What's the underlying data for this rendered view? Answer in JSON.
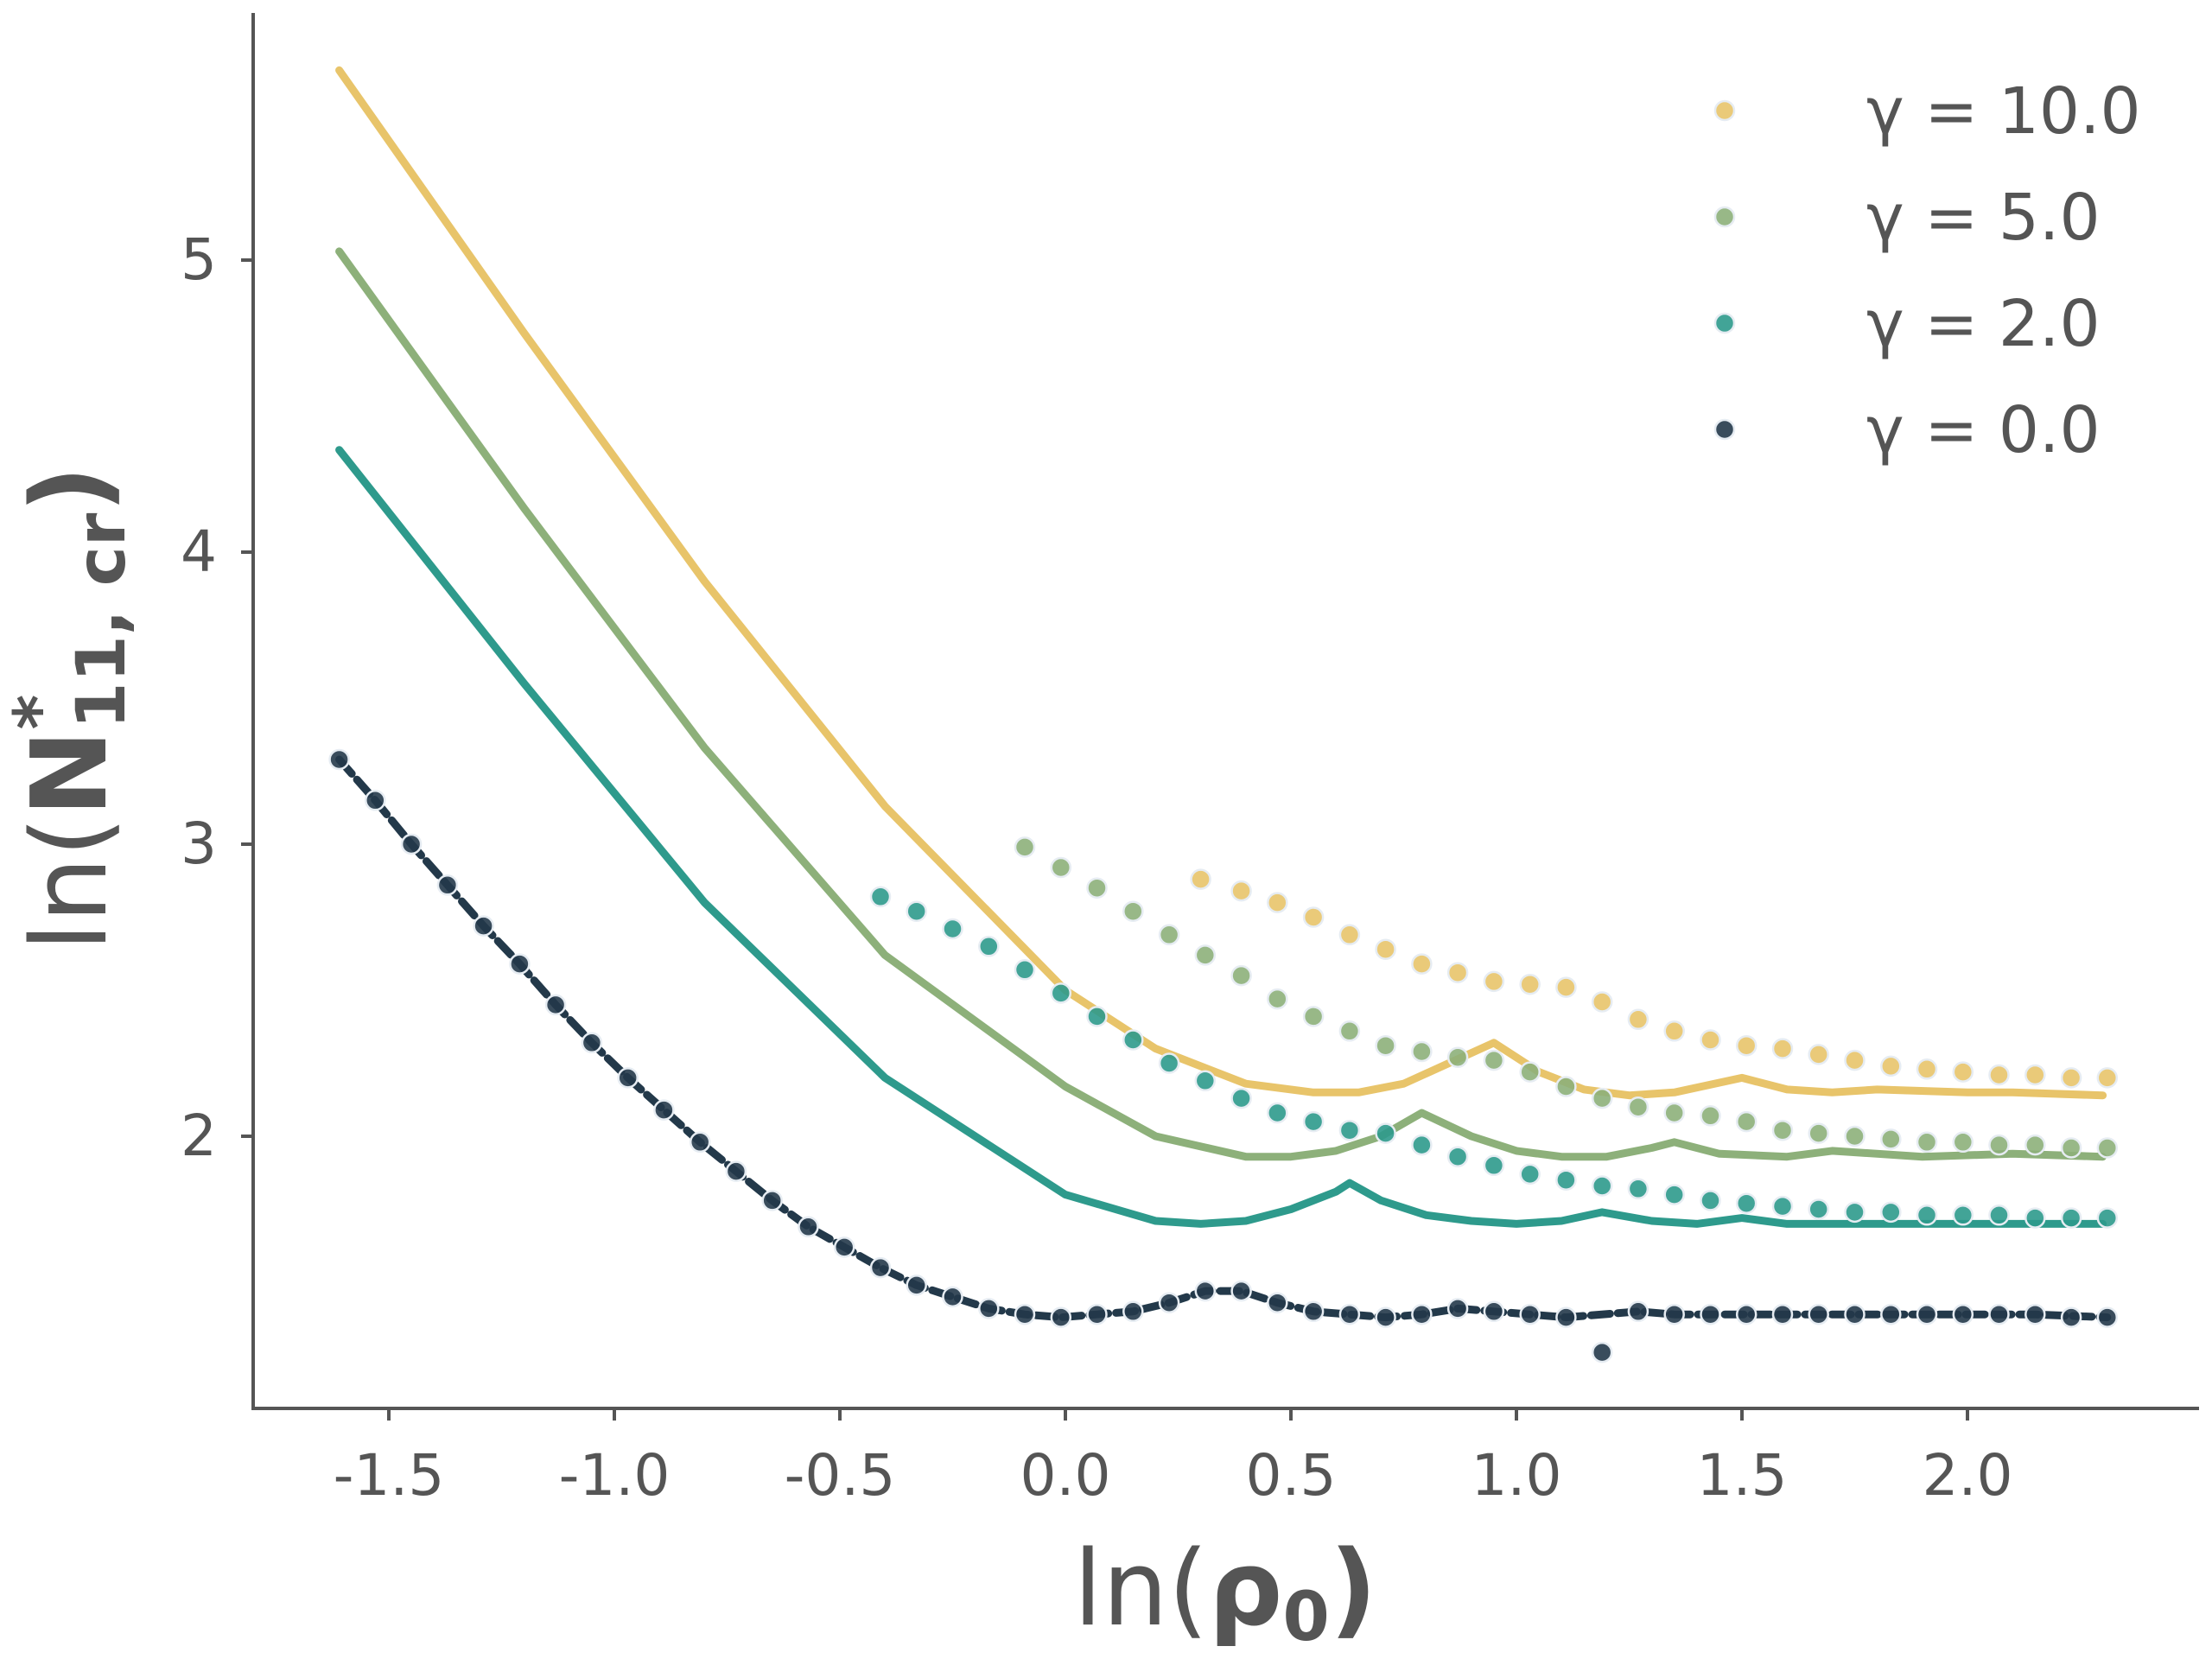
{
  "chart_data": {
    "type": "line",
    "title": "",
    "xlabel": {
      "prefix": "ln(",
      "main": "ρ",
      "sub": "0",
      "suffix": ")"
    },
    "ylabel": {
      "prefix": "ln(",
      "main": "N",
      "sup": "*",
      "sub": "11, cr",
      "suffix": ")"
    },
    "xlim": [
      -1.8,
      2.5
    ],
    "ylim": [
      1.0,
      5.8
    ],
    "xticks": [
      -1.5,
      -1.0,
      -0.5,
      0.0,
      0.5,
      1.0,
      1.5,
      2.0
    ],
    "xtick_labels": [
      "-1.5",
      "-1.0",
      "-0.5",
      "0.0",
      "0.5",
      "1.0",
      "1.5",
      "2.0"
    ],
    "yticks": [
      2,
      3,
      4,
      5
    ],
    "ytick_labels": [
      "2",
      "3",
      "4",
      "5"
    ],
    "grid": false,
    "legend_position": "top-right",
    "series": [
      {
        "name": "γ = 10.0",
        "color": "#E8C46A",
        "line": [
          [
            -1.61,
            5.65
          ],
          [
            -1.2,
            4.75
          ],
          [
            -0.8,
            3.9
          ],
          [
            -0.4,
            3.13
          ],
          [
            0.0,
            2.5
          ],
          [
            0.2,
            2.3
          ],
          [
            0.4,
            2.18
          ],
          [
            0.55,
            2.15
          ],
          [
            0.65,
            2.15
          ],
          [
            0.75,
            2.18
          ],
          [
            0.85,
            2.25
          ],
          [
            0.95,
            2.32
          ],
          [
            1.05,
            2.22
          ],
          [
            1.15,
            2.16
          ],
          [
            1.25,
            2.14
          ],
          [
            1.35,
            2.15
          ],
          [
            1.5,
            2.2
          ],
          [
            1.6,
            2.16
          ],
          [
            1.7,
            2.15
          ],
          [
            1.8,
            2.16
          ],
          [
            2.0,
            2.15
          ],
          [
            2.1,
            2.15
          ],
          [
            2.3,
            2.14
          ]
        ],
        "points": [
          [
            0.3,
            2.88
          ],
          [
            0.39,
            2.84
          ],
          [
            0.47,
            2.8
          ],
          [
            0.55,
            2.75
          ],
          [
            0.63,
            2.69
          ],
          [
            0.71,
            2.64
          ],
          [
            0.79,
            2.59
          ],
          [
            0.87,
            2.56
          ],
          [
            0.95,
            2.53
          ],
          [
            1.03,
            2.52
          ],
          [
            1.11,
            2.51
          ],
          [
            1.19,
            2.46
          ],
          [
            1.27,
            2.4
          ],
          [
            1.35,
            2.36
          ],
          [
            1.43,
            2.33
          ],
          [
            1.51,
            2.31
          ],
          [
            1.59,
            2.3
          ],
          [
            1.67,
            2.28
          ],
          [
            1.75,
            2.26
          ],
          [
            1.83,
            2.24
          ],
          [
            1.91,
            2.23
          ],
          [
            1.99,
            2.22
          ],
          [
            2.07,
            2.21
          ],
          [
            2.15,
            2.21
          ],
          [
            2.23,
            2.2
          ],
          [
            2.31,
            2.2
          ]
        ]
      },
      {
        "name": "γ = 5.0",
        "color": "#8DB07A",
        "line": [
          [
            -1.61,
            5.03
          ],
          [
            -1.2,
            4.15
          ],
          [
            -0.8,
            3.33
          ],
          [
            -0.4,
            2.62
          ],
          [
            0.0,
            2.17
          ],
          [
            0.2,
            2.0
          ],
          [
            0.4,
            1.93
          ],
          [
            0.5,
            1.93
          ],
          [
            0.6,
            1.95
          ],
          [
            0.7,
            2.0
          ],
          [
            0.79,
            2.08
          ],
          [
            0.9,
            2.0
          ],
          [
            1.0,
            1.95
          ],
          [
            1.1,
            1.93
          ],
          [
            1.2,
            1.93
          ],
          [
            1.3,
            1.96
          ],
          [
            1.35,
            1.98
          ],
          [
            1.45,
            1.94
          ],
          [
            1.6,
            1.93
          ],
          [
            1.7,
            1.95
          ],
          [
            1.9,
            1.93
          ],
          [
            2.1,
            1.94
          ],
          [
            2.3,
            1.93
          ]
        ],
        "points": [
          [
            -0.09,
            2.99
          ],
          [
            -0.01,
            2.92
          ],
          [
            0.07,
            2.85
          ],
          [
            0.15,
            2.77
          ],
          [
            0.23,
            2.69
          ],
          [
            0.31,
            2.62
          ],
          [
            0.39,
            2.55
          ],
          [
            0.47,
            2.47
          ],
          [
            0.55,
            2.41
          ],
          [
            0.63,
            2.36
          ],
          [
            0.71,
            2.31
          ],
          [
            0.79,
            2.29
          ],
          [
            0.87,
            2.27
          ],
          [
            0.95,
            2.26
          ],
          [
            1.03,
            2.22
          ],
          [
            1.11,
            2.17
          ],
          [
            1.19,
            2.13
          ],
          [
            1.27,
            2.1
          ],
          [
            1.35,
            2.08
          ],
          [
            1.43,
            2.07
          ],
          [
            1.51,
            2.05
          ],
          [
            1.59,
            2.02
          ],
          [
            1.67,
            2.01
          ],
          [
            1.75,
            2.0
          ],
          [
            1.83,
            1.99
          ],
          [
            1.91,
            1.98
          ],
          [
            1.99,
            1.98
          ],
          [
            2.07,
            1.97
          ],
          [
            2.15,
            1.97
          ],
          [
            2.23,
            1.96
          ],
          [
            2.31,
            1.96
          ]
        ]
      },
      {
        "name": "γ = 2.0",
        "color": "#2E9A8C",
        "line": [
          [
            -1.61,
            4.35
          ],
          [
            -1.2,
            3.55
          ],
          [
            -0.8,
            2.8
          ],
          [
            -0.4,
            2.2
          ],
          [
            0.0,
            1.8
          ],
          [
            0.2,
            1.71
          ],
          [
            0.3,
            1.7
          ],
          [
            0.4,
            1.71
          ],
          [
            0.5,
            1.75
          ],
          [
            0.6,
            1.81
          ],
          [
            0.63,
            1.84
          ],
          [
            0.7,
            1.78
          ],
          [
            0.8,
            1.73
          ],
          [
            0.9,
            1.71
          ],
          [
            1.0,
            1.7
          ],
          [
            1.1,
            1.71
          ],
          [
            1.19,
            1.74
          ],
          [
            1.3,
            1.71
          ],
          [
            1.4,
            1.7
          ],
          [
            1.5,
            1.72
          ],
          [
            1.6,
            1.7
          ],
          [
            1.7,
            1.7
          ],
          [
            1.9,
            1.7
          ],
          [
            2.1,
            1.7
          ],
          [
            2.3,
            1.7
          ]
        ],
        "points": [
          [
            -0.41,
            2.82
          ],
          [
            -0.33,
            2.77
          ],
          [
            -0.25,
            2.71
          ],
          [
            -0.17,
            2.65
          ],
          [
            -0.09,
            2.57
          ],
          [
            -0.01,
            2.49
          ],
          [
            0.07,
            2.41
          ],
          [
            0.15,
            2.33
          ],
          [
            0.23,
            2.25
          ],
          [
            0.31,
            2.19
          ],
          [
            0.39,
            2.13
          ],
          [
            0.47,
            2.08
          ],
          [
            0.55,
            2.05
          ],
          [
            0.63,
            2.02
          ],
          [
            0.71,
            2.01
          ],
          [
            0.79,
            1.97
          ],
          [
            0.87,
            1.93
          ],
          [
            0.95,
            1.9
          ],
          [
            1.03,
            1.87
          ],
          [
            1.11,
            1.85
          ],
          [
            1.19,
            1.83
          ],
          [
            1.27,
            1.82
          ],
          [
            1.35,
            1.8
          ],
          [
            1.43,
            1.78
          ],
          [
            1.51,
            1.77
          ],
          [
            1.59,
            1.76
          ],
          [
            1.67,
            1.75
          ],
          [
            1.75,
            1.74
          ],
          [
            1.83,
            1.74
          ],
          [
            1.91,
            1.73
          ],
          [
            1.99,
            1.73
          ],
          [
            2.07,
            1.73
          ],
          [
            2.15,
            1.72
          ],
          [
            2.23,
            1.72
          ],
          [
            2.31,
            1.72
          ]
        ]
      },
      {
        "name": "γ = 0.0",
        "color": "#23394A",
        "line": [
          [
            -1.61,
            3.29
          ],
          [
            -1.53,
            3.15
          ],
          [
            -1.45,
            3.0
          ],
          [
            -1.37,
            2.86
          ],
          [
            -1.29,
            2.72
          ],
          [
            -1.21,
            2.59
          ],
          [
            -1.13,
            2.45
          ],
          [
            -1.05,
            2.32
          ],
          [
            -0.97,
            2.2
          ],
          [
            -0.89,
            2.09
          ],
          [
            -0.81,
            1.98
          ],
          [
            -0.73,
            1.88
          ],
          [
            -0.65,
            1.78
          ],
          [
            -0.57,
            1.69
          ],
          [
            -0.49,
            1.62
          ],
          [
            -0.41,
            1.55
          ],
          [
            -0.33,
            1.49
          ],
          [
            -0.25,
            1.45
          ],
          [
            -0.17,
            1.41
          ],
          [
            -0.09,
            1.39
          ],
          [
            -0.01,
            1.38
          ],
          [
            0.07,
            1.39
          ],
          [
            0.15,
            1.4
          ],
          [
            0.23,
            1.43
          ],
          [
            0.31,
            1.47
          ],
          [
            0.39,
            1.47
          ],
          [
            0.47,
            1.43
          ],
          [
            0.55,
            1.4
          ],
          [
            0.63,
            1.39
          ],
          [
            0.71,
            1.38
          ],
          [
            0.79,
            1.39
          ],
          [
            0.87,
            1.41
          ],
          [
            0.95,
            1.4
          ],
          [
            1.03,
            1.39
          ],
          [
            1.11,
            1.38
          ],
          [
            1.27,
            1.4
          ],
          [
            1.35,
            1.39
          ],
          [
            1.51,
            1.39
          ],
          [
            1.67,
            1.39
          ],
          [
            1.83,
            1.39
          ],
          [
            1.99,
            1.39
          ],
          [
            2.15,
            1.39
          ],
          [
            2.31,
            1.38
          ]
        ],
        "points": [
          [
            -1.61,
            3.29
          ],
          [
            -1.53,
            3.15
          ],
          [
            -1.45,
            3.0
          ],
          [
            -1.37,
            2.86
          ],
          [
            -1.29,
            2.72
          ],
          [
            -1.21,
            2.59
          ],
          [
            -1.13,
            2.45
          ],
          [
            -1.05,
            2.32
          ],
          [
            -0.97,
            2.2
          ],
          [
            -0.89,
            2.09
          ],
          [
            -0.81,
            1.98
          ],
          [
            -0.73,
            1.88
          ],
          [
            -0.65,
            1.78
          ],
          [
            -0.57,
            1.69
          ],
          [
            -0.49,
            1.62
          ],
          [
            -0.41,
            1.55
          ],
          [
            -0.33,
            1.49
          ],
          [
            -0.25,
            1.45
          ],
          [
            -0.17,
            1.41
          ],
          [
            -0.09,
            1.39
          ],
          [
            -0.01,
            1.38
          ],
          [
            0.07,
            1.39
          ],
          [
            0.15,
            1.4
          ],
          [
            0.23,
            1.43
          ],
          [
            0.31,
            1.47
          ],
          [
            0.39,
            1.47
          ],
          [
            0.47,
            1.43
          ],
          [
            0.55,
            1.4
          ],
          [
            0.63,
            1.39
          ],
          [
            0.71,
            1.38
          ],
          [
            0.79,
            1.39
          ],
          [
            0.87,
            1.41
          ],
          [
            0.95,
            1.4
          ],
          [
            1.03,
            1.39
          ],
          [
            1.11,
            1.38
          ],
          [
            1.19,
            1.26
          ],
          [
            1.27,
            1.4
          ],
          [
            1.35,
            1.39
          ],
          [
            1.43,
            1.39
          ],
          [
            1.51,
            1.39
          ],
          [
            1.59,
            1.39
          ],
          [
            1.67,
            1.39
          ],
          [
            1.75,
            1.39
          ],
          [
            1.83,
            1.39
          ],
          [
            1.91,
            1.39
          ],
          [
            1.99,
            1.39
          ],
          [
            2.07,
            1.39
          ],
          [
            2.15,
            1.39
          ],
          [
            2.23,
            1.38
          ],
          [
            2.31,
            1.38
          ]
        ]
      }
    ]
  }
}
